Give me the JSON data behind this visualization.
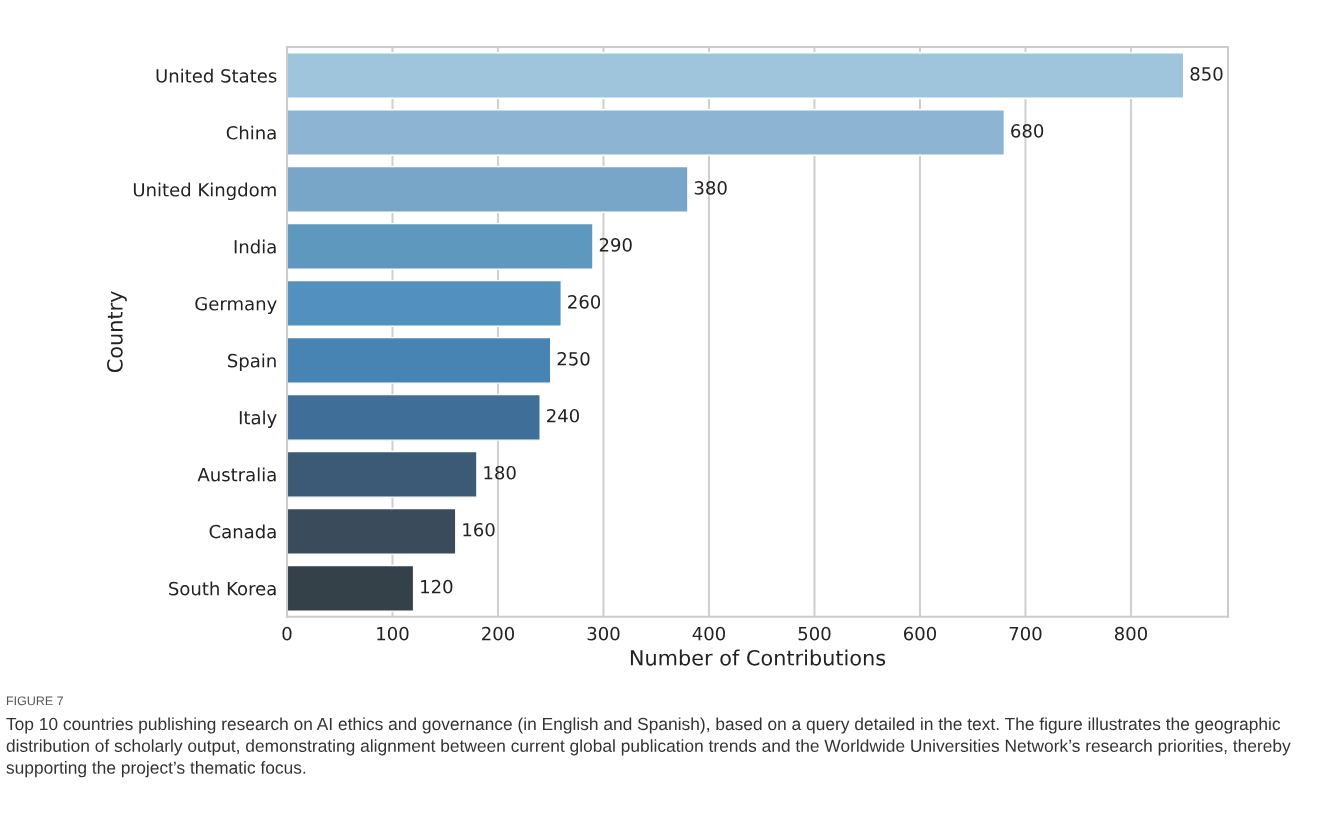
{
  "chart_data": {
    "type": "bar",
    "orientation": "horizontal",
    "xlabel": "Number of Contributions",
    "ylabel": "Country",
    "categories": [
      "United States",
      "China",
      "United Kingdom",
      "India",
      "Germany",
      "Spain",
      "Italy",
      "Australia",
      "Canada",
      "South Korea"
    ],
    "values": [
      850,
      680,
      380,
      290,
      260,
      250,
      240,
      180,
      160,
      120
    ],
    "colors": [
      "#9ec5dc",
      "#8db4d2",
      "#78a6c9",
      "#5f98bf",
      "#5290c0",
      "#4783b3",
      "#3f6f98",
      "#3c5a75",
      "#3a4c5c",
      "#344148"
    ],
    "xlim": [
      0,
      892
    ],
    "xticks": [
      0,
      100,
      200,
      300,
      400,
      500,
      600,
      700,
      800
    ],
    "grid": "x",
    "data_labels": true,
    "annotations": [
      "FIGURE 7",
      "Top 10 countries publishing research on AI ethics and governance (in English and Spanish), based on a query detailed in the text. The figure illustrates the geographic distribution of scholarly output, demonstrating alignment between current global publication trends and the Worldwide Universities Network’s research priorities, thereby supporting the project’s thematic focus."
    ]
  }
}
